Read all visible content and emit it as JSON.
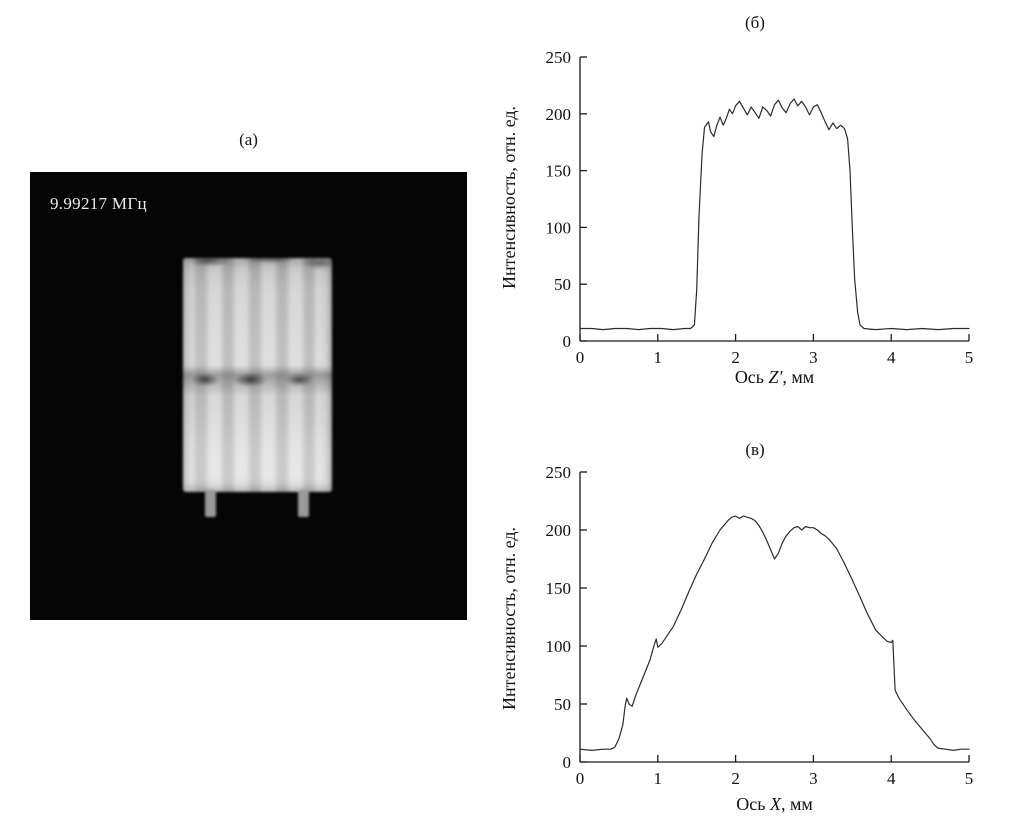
{
  "panel_a": {
    "label": "(а)",
    "frequency": "9.99217 МГц"
  },
  "labels": {
    "b_x_prefix": "Ось ",
    "b_x_var": "Z'",
    "b_x_suffix": ", мм",
    "v_x_prefix": "Ось ",
    "v_x_var": "X",
    "v_x_suffix": ", мм"
  },
  "chart_data": [
    {
      "id": "chart-b",
      "type": "line",
      "title": "(б)",
      "xlabel": "Ось Z', мм",
      "ylabel": "Интенсивность, отн. ед.",
      "xlim": [
        0,
        5
      ],
      "ylim": [
        0,
        250
      ],
      "xticks": [
        0,
        1,
        2,
        3,
        4,
        5
      ],
      "yticks": [
        0,
        50,
        100,
        150,
        200,
        250
      ],
      "grid": false,
      "legend": "none",
      "x": [
        0,
        0.15,
        0.3,
        0.45,
        0.6,
        0.75,
        0.9,
        1.05,
        1.2,
        1.35,
        1.42,
        1.47,
        1.5,
        1.53,
        1.57,
        1.6,
        1.65,
        1.68,
        1.72,
        1.76,
        1.8,
        1.84,
        1.88,
        1.92,
        1.96,
        2.0,
        2.05,
        2.1,
        2.15,
        2.2,
        2.25,
        2.3,
        2.35,
        2.4,
        2.45,
        2.5,
        2.55,
        2.6,
        2.65,
        2.7,
        2.75,
        2.8,
        2.85,
        2.9,
        2.95,
        3.0,
        3.05,
        3.1,
        3.15,
        3.2,
        3.25,
        3.3,
        3.35,
        3.4,
        3.44,
        3.47,
        3.5,
        3.53,
        3.57,
        3.6,
        3.65,
        3.8,
        4.0,
        4.2,
        4.4,
        4.6,
        4.8,
        5.0
      ],
      "y": [
        11,
        11,
        10,
        11,
        11,
        10,
        11,
        11,
        10,
        11,
        11,
        14,
        45,
        110,
        165,
        188,
        193,
        184,
        180,
        190,
        197,
        190,
        196,
        204,
        200,
        207,
        211,
        205,
        199,
        206,
        201,
        196,
        206,
        203,
        198,
        208,
        212,
        205,
        201,
        209,
        213,
        207,
        211,
        206,
        199,
        206,
        208,
        201,
        193,
        186,
        192,
        187,
        190,
        187,
        178,
        150,
        100,
        55,
        25,
        14,
        11,
        10,
        11,
        10,
        11,
        10,
        11,
        11
      ]
    },
    {
      "id": "chart-v",
      "type": "line",
      "title": "(в)",
      "xlabel": "Ось X, мм",
      "ylabel": "Интенсивность, отн. ед.",
      "xlim": [
        0,
        5
      ],
      "ylim": [
        0,
        250
      ],
      "xticks": [
        0,
        1,
        2,
        3,
        4,
        5
      ],
      "yticks": [
        0,
        50,
        100,
        150,
        200,
        250
      ],
      "grid": false,
      "legend": "none",
      "x": [
        0,
        0.15,
        0.3,
        0.4,
        0.45,
        0.5,
        0.55,
        0.58,
        0.6,
        0.63,
        0.67,
        0.72,
        0.78,
        0.84,
        0.9,
        0.95,
        0.98,
        1.0,
        1.05,
        1.1,
        1.2,
        1.3,
        1.4,
        1.5,
        1.6,
        1.7,
        1.8,
        1.9,
        1.95,
        2.0,
        2.05,
        2.1,
        2.15,
        2.2,
        2.25,
        2.3,
        2.35,
        2.4,
        2.45,
        2.5,
        2.55,
        2.6,
        2.65,
        2.7,
        2.75,
        2.8,
        2.85,
        2.9,
        2.95,
        3.0,
        3.05,
        3.1,
        3.15,
        3.2,
        3.3,
        3.4,
        3.5,
        3.6,
        3.7,
        3.8,
        3.9,
        3.95,
        4.0,
        4.02,
        4.05,
        4.1,
        4.2,
        4.3,
        4.4,
        4.5,
        4.55,
        4.6,
        4.7,
        4.8,
        4.9,
        5.0
      ],
      "y": [
        11,
        10,
        11,
        11,
        13,
        20,
        32,
        48,
        55,
        50,
        48,
        58,
        68,
        78,
        88,
        100,
        106,
        99,
        102,
        107,
        117,
        131,
        147,
        162,
        175,
        189,
        200,
        208,
        211,
        212,
        210,
        212,
        211,
        210,
        208,
        204,
        198,
        191,
        183,
        175,
        180,
        189,
        195,
        199,
        202,
        203,
        200,
        203,
        202,
        202,
        200,
        197,
        195,
        192,
        184,
        171,
        157,
        142,
        127,
        114,
        107,
        104,
        103,
        105,
        62,
        55,
        45,
        36,
        28,
        20,
        15,
        12,
        11,
        10,
        11,
        11
      ]
    }
  ]
}
